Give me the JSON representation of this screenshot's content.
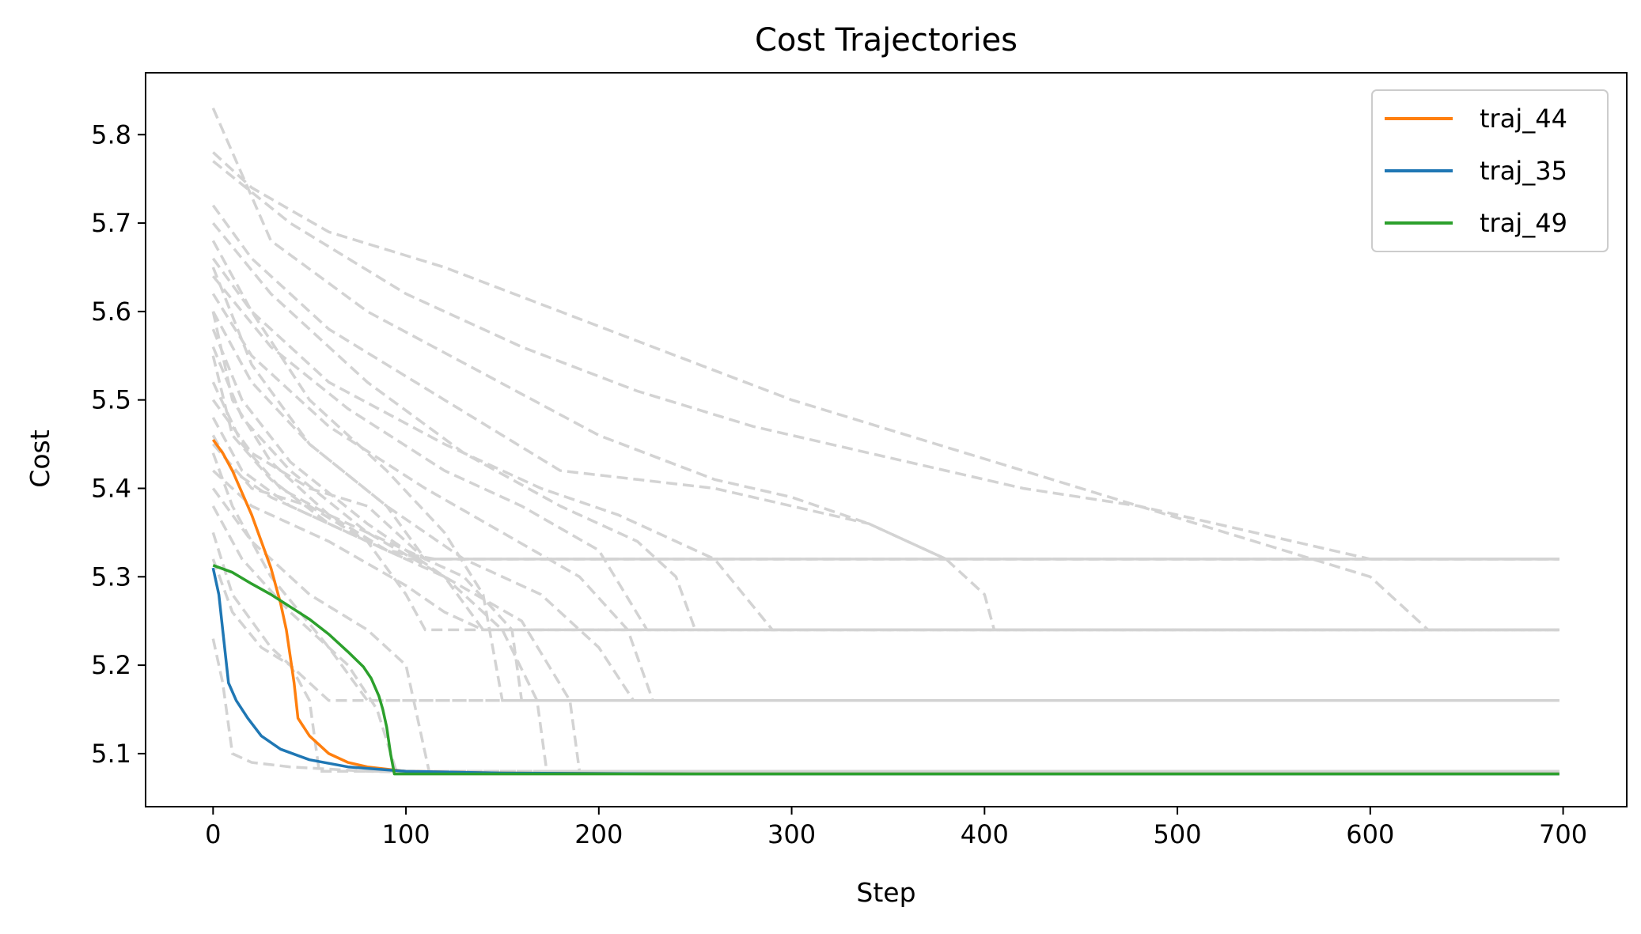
{
  "chart_data": {
    "type": "line",
    "title": "Cost Trajectories",
    "xlabel": "Step",
    "ylabel": "Cost",
    "xlim": [
      -35,
      733
    ],
    "ylim": [
      5.04,
      5.87
    ],
    "xticks": [
      "0",
      "100",
      "200",
      "300",
      "400",
      "500",
      "600",
      "700"
    ],
    "yticks": [
      "5.1",
      "5.2",
      "5.3",
      "5.4",
      "5.5",
      "5.6",
      "5.7",
      "5.8"
    ],
    "grid": false,
    "legend_position": "top-right",
    "background_color": "#d3d3d3",
    "background_series": [
      {
        "x": [
          0,
          20,
          60,
          120,
          180,
          240,
          300,
          360,
          420,
          480,
          540,
          600,
          610,
          620,
          630,
          698
        ],
        "y": [
          5.78,
          5.74,
          5.69,
          5.65,
          5.6,
          5.55,
          5.5,
          5.46,
          5.42,
          5.38,
          5.34,
          5.3,
          5.28,
          5.26,
          5.24,
          5.24
        ]
      },
      {
        "x": [
          0,
          40,
          100,
          160,
          220,
          280,
          340,
          400,
          420,
          480,
          540,
          600,
          698
        ],
        "y": [
          5.77,
          5.7,
          5.62,
          5.56,
          5.51,
          5.47,
          5.44,
          5.41,
          5.4,
          5.38,
          5.35,
          5.32,
          5.32
        ]
      },
      {
        "x": [
          0,
          30,
          80,
          140,
          200,
          260,
          300,
          340,
          380,
          400,
          405,
          698
        ],
        "y": [
          5.83,
          5.68,
          5.6,
          5.53,
          5.46,
          5.41,
          5.39,
          5.36,
          5.32,
          5.28,
          5.24,
          5.24
        ]
      },
      {
        "x": [
          0,
          20,
          60,
          120,
          180,
          220,
          260,
          300,
          340,
          380,
          698
        ],
        "y": [
          5.72,
          5.66,
          5.58,
          5.5,
          5.42,
          5.41,
          5.4,
          5.38,
          5.36,
          5.32,
          5.32
        ]
      },
      {
        "x": [
          0,
          30,
          80,
          130,
          180,
          220,
          240,
          250,
          698
        ],
        "y": [
          5.7,
          5.62,
          5.52,
          5.44,
          5.38,
          5.34,
          5.3,
          5.24,
          5.24
        ]
      },
      {
        "x": [
          0,
          20,
          60,
          120,
          170,
          210,
          260,
          290,
          698
        ],
        "y": [
          5.66,
          5.6,
          5.52,
          5.45,
          5.4,
          5.37,
          5.32,
          5.24,
          5.24
        ]
      },
      {
        "x": [
          0,
          30,
          70,
          120,
          160,
          200,
          225,
          698
        ],
        "y": [
          5.64,
          5.56,
          5.49,
          5.42,
          5.38,
          5.33,
          5.24,
          5.24
        ]
      },
      {
        "x": [
          0,
          20,
          60,
          110,
          150,
          190,
          215,
          228,
          698
        ],
        "y": [
          5.62,
          5.55,
          5.47,
          5.4,
          5.35,
          5.3,
          5.24,
          5.16,
          5.16
        ]
      },
      {
        "x": [
          0,
          20,
          50,
          90,
          130,
          170,
          200,
          218,
          698
        ],
        "y": [
          5.6,
          5.52,
          5.45,
          5.38,
          5.32,
          5.28,
          5.22,
          5.16,
          5.16
        ]
      },
      {
        "x": [
          0,
          15,
          40,
          80,
          120,
          160,
          185,
          190,
          698
        ],
        "y": [
          5.58,
          5.5,
          5.43,
          5.36,
          5.3,
          5.25,
          5.16,
          5.08,
          5.08
        ]
      },
      {
        "x": [
          0,
          15,
          40,
          80,
          120,
          150,
          168,
          173,
          698
        ],
        "y": [
          5.56,
          5.48,
          5.42,
          5.35,
          5.3,
          5.24,
          5.16,
          5.08,
          5.08
        ]
      },
      {
        "x": [
          0,
          20,
          50,
          90,
          120,
          140,
          150,
          698
        ],
        "y": [
          5.68,
          5.6,
          5.5,
          5.42,
          5.35,
          5.28,
          5.16,
          5.16
        ]
      },
      {
        "x": [
          0,
          20,
          50,
          90,
          110,
          120,
          698
        ],
        "y": [
          5.65,
          5.54,
          5.45,
          5.38,
          5.32,
          5.32,
          5.32
        ]
      },
      {
        "x": [
          0,
          10,
          30,
          60,
          90,
          110,
          698
        ],
        "y": [
          5.6,
          5.5,
          5.43,
          5.37,
          5.33,
          5.32,
          5.32
        ]
      },
      {
        "x": [
          0,
          10,
          30,
          60,
          90,
          115,
          698
        ],
        "y": [
          5.55,
          5.46,
          5.41,
          5.36,
          5.33,
          5.32,
          5.32
        ]
      },
      {
        "x": [
          0,
          20,
          50,
          80,
          110,
          698
        ],
        "y": [
          5.5,
          5.44,
          5.4,
          5.38,
          5.32,
          5.32
        ]
      },
      {
        "x": [
          0,
          15,
          40,
          70,
          100,
          698
        ],
        "y": [
          5.48,
          5.42,
          5.38,
          5.35,
          5.32,
          5.32
        ]
      },
      {
        "x": [
          0,
          20,
          50,
          80,
          100,
          110,
          698
        ],
        "y": [
          5.45,
          5.4,
          5.38,
          5.34,
          5.28,
          5.24,
          5.24
        ]
      },
      {
        "x": [
          0,
          20,
          60,
          100,
          120,
          140,
          698
        ],
        "y": [
          5.42,
          5.38,
          5.34,
          5.29,
          5.26,
          5.24,
          5.24
        ]
      },
      {
        "x": [
          0,
          20,
          50,
          80,
          100,
          105,
          112,
          698
        ],
        "y": [
          5.4,
          5.34,
          5.28,
          5.24,
          5.2,
          5.15,
          5.08,
          5.08
        ]
      },
      {
        "x": [
          0,
          15,
          40,
          70,
          85,
          95,
          698
        ],
        "y": [
          5.38,
          5.32,
          5.26,
          5.2,
          5.15,
          5.08,
          5.08
        ]
      },
      {
        "x": [
          0,
          10,
          30,
          50,
          60,
          698
        ],
        "y": [
          5.35,
          5.28,
          5.22,
          5.18,
          5.16,
          5.16
        ]
      },
      {
        "x": [
          0,
          10,
          25,
          40,
          50,
          55,
          698
        ],
        "y": [
          5.32,
          5.26,
          5.22,
          5.2,
          5.16,
          5.08,
          5.08
        ]
      },
      {
        "x": [
          0,
          5,
          10,
          20,
          40,
          80,
          120,
          698
        ],
        "y": [
          5.23,
          5.18,
          5.1,
          5.09,
          5.085,
          5.08,
          5.078,
          5.078
        ]
      },
      {
        "x": [
          0,
          15,
          35,
          60,
          90,
          130,
          155,
          160,
          698
        ],
        "y": [
          5.52,
          5.45,
          5.4,
          5.37,
          5.34,
          5.3,
          5.24,
          5.16,
          5.16
        ]
      },
      {
        "x": [
          0,
          10,
          30,
          60,
          90,
          120,
          140,
          698
        ],
        "y": [
          5.46,
          5.42,
          5.39,
          5.36,
          5.33,
          5.3,
          5.24,
          5.24
        ]
      },
      {
        "x": [
          0,
          10,
          30,
          60,
          80,
          698
        ],
        "y": [
          5.44,
          5.38,
          5.3,
          5.22,
          5.16,
          5.16
        ]
      }
    ],
    "series": [
      {
        "name": "traj_44",
        "color": "#ff7f0e",
        "x": [
          0,
          5,
          10,
          15,
          20,
          25,
          30,
          35,
          38,
          40,
          42,
          44,
          50,
          60,
          70,
          80,
          100,
          150,
          250,
          400,
          698
        ],
        "y": [
          5.455,
          5.44,
          5.42,
          5.395,
          5.37,
          5.34,
          5.31,
          5.27,
          5.24,
          5.21,
          5.18,
          5.14,
          5.12,
          5.1,
          5.09,
          5.085,
          5.08,
          5.078,
          5.077,
          5.077,
          5.077
        ]
      },
      {
        "name": "traj_35",
        "color": "#1f77b4",
        "x": [
          0,
          3,
          6,
          8,
          12,
          18,
          25,
          35,
          50,
          70,
          100,
          150,
          250,
          400,
          698
        ],
        "y": [
          5.31,
          5.28,
          5.22,
          5.18,
          5.16,
          5.14,
          5.12,
          5.105,
          5.093,
          5.085,
          5.08,
          5.078,
          5.077,
          5.077,
          5.077
        ]
      },
      {
        "name": "traj_49",
        "color": "#2ca02c",
        "x": [
          0,
          10,
          20,
          30,
          40,
          50,
          60,
          70,
          78,
          82,
          86,
          88,
          90,
          92,
          94,
          100,
          200,
          400,
          698
        ],
        "y": [
          5.313,
          5.305,
          5.292,
          5.28,
          5.266,
          5.252,
          5.235,
          5.215,
          5.198,
          5.185,
          5.165,
          5.15,
          5.13,
          5.1,
          5.077,
          5.077,
          5.077,
          5.077,
          5.077
        ]
      }
    ]
  }
}
